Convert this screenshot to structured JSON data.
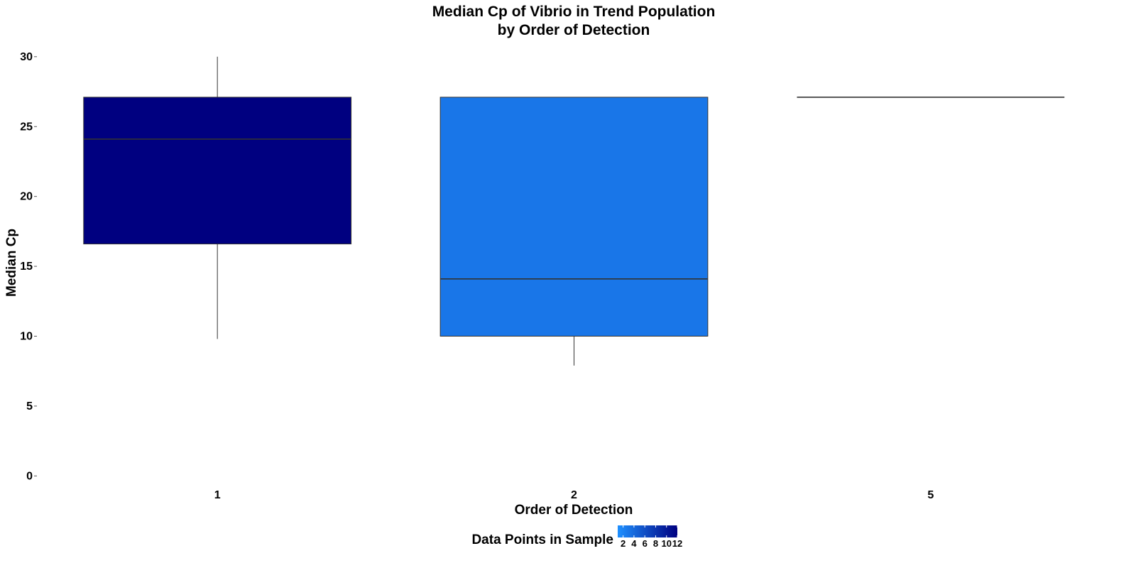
{
  "chart_data": {
    "type": "box",
    "title_lines": [
      "Median Cp of Vibrio in Trend Population",
      "by Order of Detection"
    ],
    "xlabel": "Order of Detection",
    "ylabel": "Median Cp",
    "categories": [
      "1",
      "2",
      "5"
    ],
    "ylim": [
      -1,
      30.5
    ],
    "yticks": [
      0,
      5,
      10,
      15,
      20,
      25,
      30
    ],
    "grid": false,
    "boxes": [
      {
        "category": "1",
        "min": 9.8,
        "q1": 16.6,
        "median": 24.1,
        "q3": 27.1,
        "max": 30.0,
        "data_points": 12
      },
      {
        "category": "2",
        "min": 7.9,
        "q1": 10.0,
        "median": 14.1,
        "q3": 27.1,
        "max": 27.1,
        "data_points": 3
      },
      {
        "category": "5",
        "min": 27.1,
        "q1": 27.1,
        "median": 27.1,
        "q3": 27.1,
        "max": 27.1,
        "data_points": 1
      }
    ],
    "legend": {
      "title": "Data Points in Sample",
      "position": "bottom",
      "breaks": [
        "2",
        "4",
        "6",
        "8",
        "10",
        "12"
      ],
      "range": [
        1,
        12
      ],
      "color_low": "#1E90FF",
      "color_high": "#000080"
    }
  }
}
